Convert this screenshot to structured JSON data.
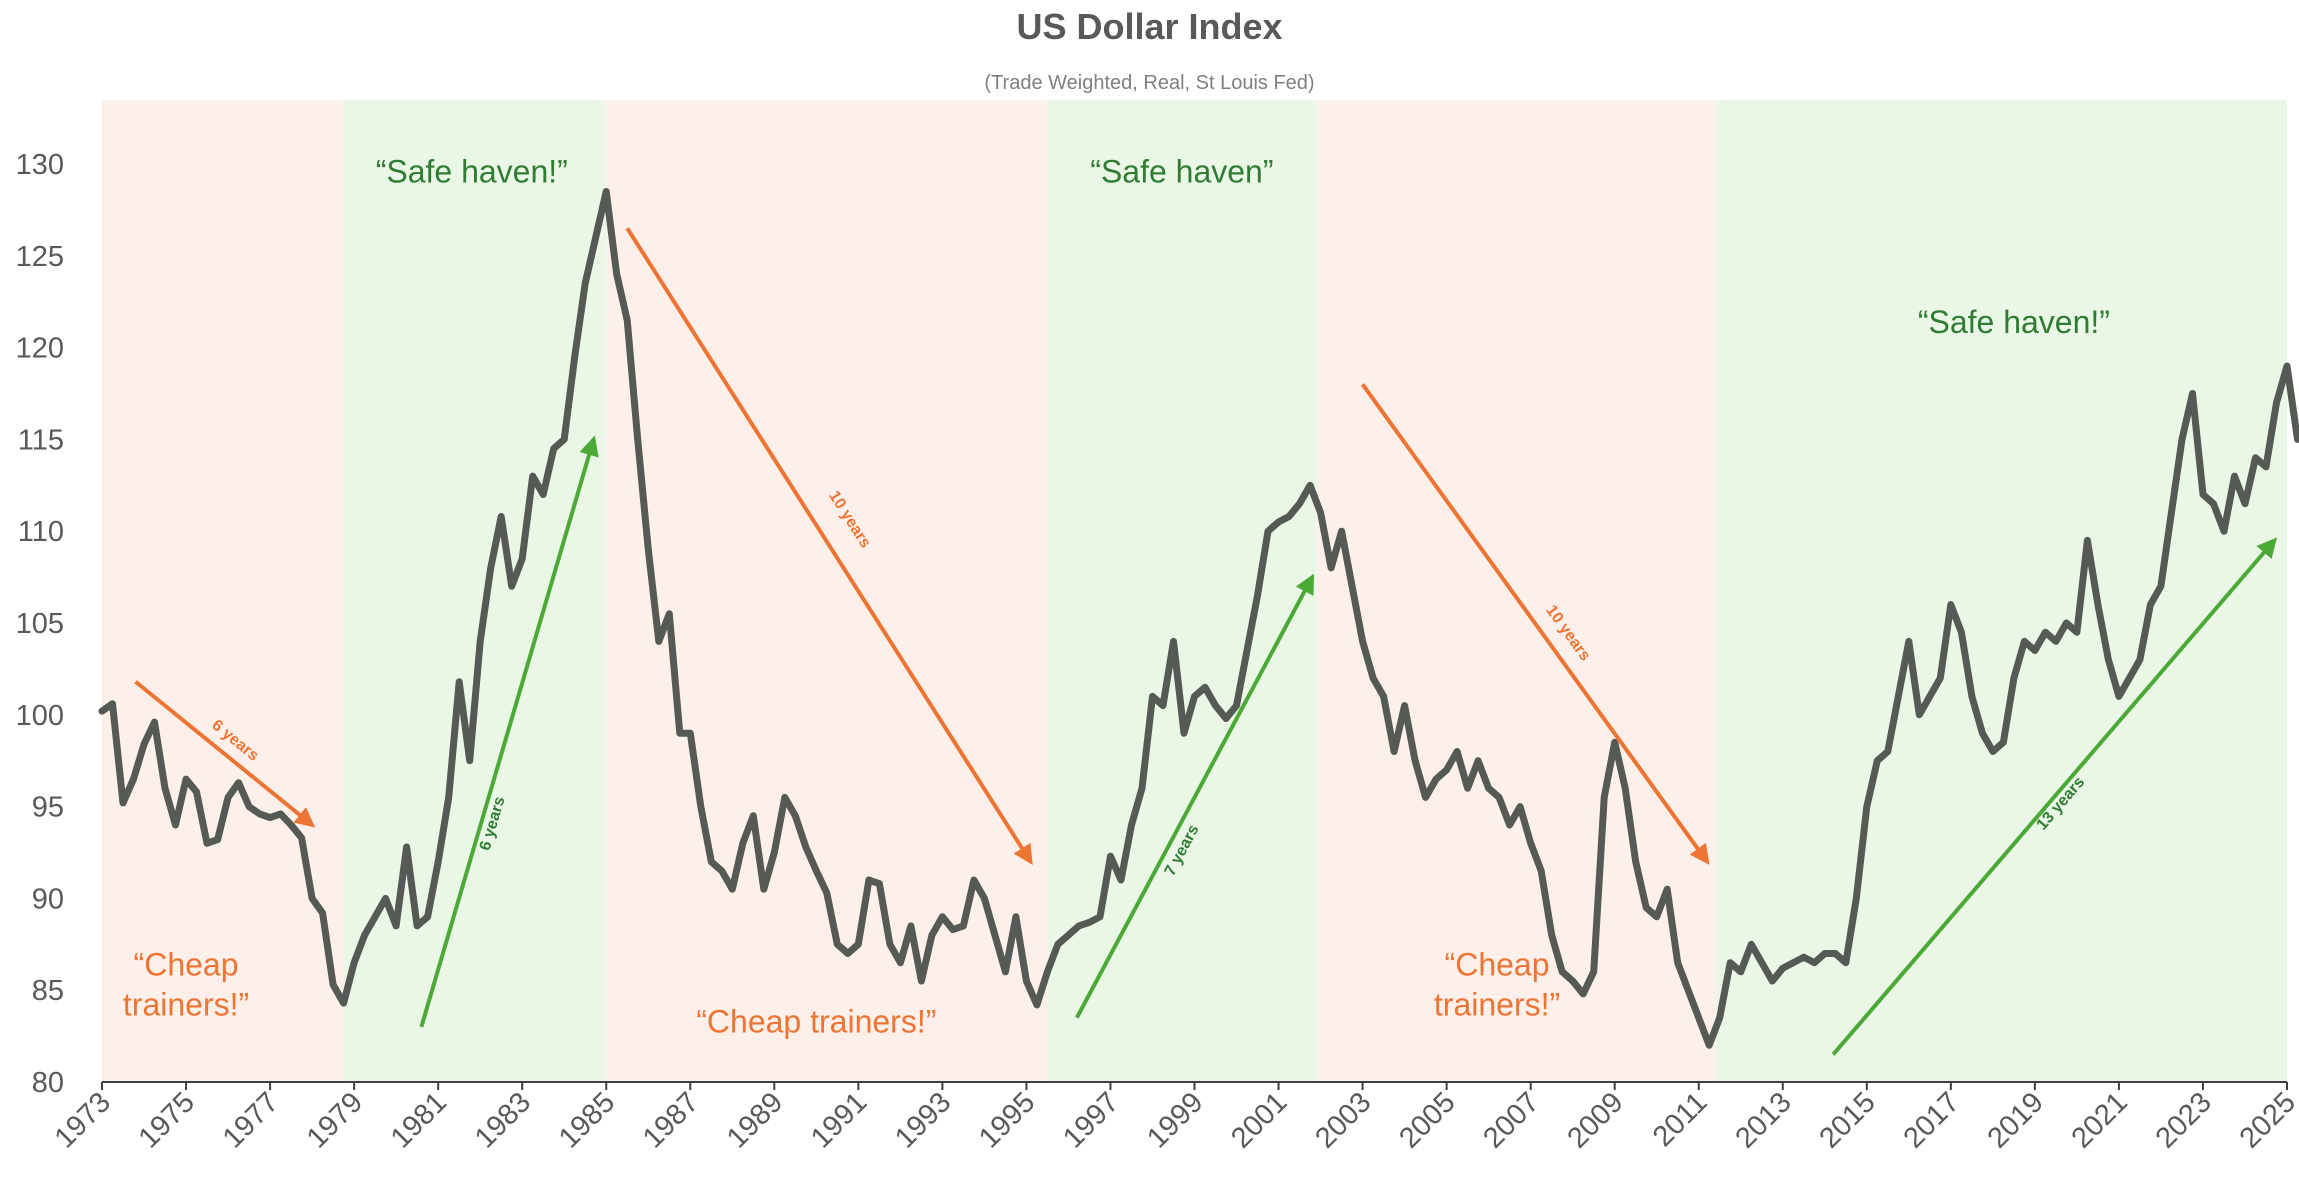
{
  "chart_data": {
    "type": "line",
    "title": "US Dollar Index",
    "subtitle": "(Trade Weighted, Real, St Louis Fed)",
    "xlabel": "",
    "ylabel": "",
    "xlim": [
      1973,
      2025
    ],
    "ylim": [
      80,
      130
    ],
    "yticks": [
      80,
      85,
      90,
      95,
      100,
      105,
      110,
      115,
      120,
      125,
      130
    ],
    "xticks": [
      1973,
      1975,
      1977,
      1979,
      1981,
      1983,
      1985,
      1987,
      1989,
      1991,
      1993,
      1995,
      1997,
      1999,
      2001,
      2003,
      2005,
      2007,
      2009,
      2011,
      2013,
      2015,
      2017,
      2019,
      2021,
      2023,
      2025
    ],
    "grid": false,
    "legend": "none",
    "colors": {
      "line": "#555a55",
      "weak_band": "#fdf0ea",
      "strong_band": "#ebf7e6",
      "orange": "#ee7433",
      "green": "#4aaa35",
      "green_text": "#2e7d32",
      "orange_text": "#ee7433"
    },
    "series": [
      {
        "points": [
          [
            1973.0,
            100.2
          ],
          [
            1973.25,
            100.6
          ],
          [
            1973.5,
            95.2
          ],
          [
            1973.75,
            96.5
          ],
          [
            1974.0,
            98.4
          ],
          [
            1974.25,
            99.6
          ],
          [
            1974.5,
            96.0
          ],
          [
            1974.75,
            94.0
          ],
          [
            1975.0,
            96.5
          ],
          [
            1975.25,
            95.8
          ],
          [
            1975.5,
            93.0
          ],
          [
            1975.75,
            93.2
          ],
          [
            1976.0,
            95.5
          ],
          [
            1976.25,
            96.3
          ],
          [
            1976.5,
            95.0
          ],
          [
            1976.75,
            94.6
          ],
          [
            1977.0,
            94.4
          ],
          [
            1977.25,
            94.6
          ],
          [
            1977.5,
            94.0
          ],
          [
            1977.75,
            93.3
          ],
          [
            1978.0,
            90.0
          ],
          [
            1978.25,
            89.2
          ],
          [
            1978.5,
            85.3
          ],
          [
            1978.75,
            84.3
          ],
          [
            1979.0,
            86.5
          ],
          [
            1979.25,
            88.0
          ],
          [
            1979.5,
            89.0
          ],
          [
            1979.75,
            90.0
          ],
          [
            1980.0,
            88.5
          ],
          [
            1980.25,
            92.8
          ],
          [
            1980.5,
            88.5
          ],
          [
            1980.75,
            89.0
          ],
          [
            1981.0,
            92.0
          ],
          [
            1981.25,
            95.5
          ],
          [
            1981.5,
            101.8
          ],
          [
            1981.75,
            97.5
          ],
          [
            1982.0,
            104.0
          ],
          [
            1982.25,
            108.0
          ],
          [
            1982.5,
            110.8
          ],
          [
            1982.75,
            107.0
          ],
          [
            1983.0,
            108.5
          ],
          [
            1983.25,
            113.0
          ],
          [
            1983.5,
            112.0
          ],
          [
            1983.75,
            114.5
          ],
          [
            1984.0,
            115.0
          ],
          [
            1984.25,
            119.5
          ],
          [
            1984.5,
            123.5
          ],
          [
            1984.75,
            126.0
          ],
          [
            1985.0,
            128.5
          ],
          [
            1985.25,
            124.0
          ],
          [
            1985.5,
            121.5
          ],
          [
            1985.75,
            115.0
          ],
          [
            1986.0,
            109.0
          ],
          [
            1986.25,
            104.0
          ],
          [
            1986.5,
            105.5
          ],
          [
            1986.75,
            99.0
          ],
          [
            1987.0,
            99.0
          ],
          [
            1987.25,
            95.0
          ],
          [
            1987.5,
            92.0
          ],
          [
            1987.75,
            91.5
          ],
          [
            1988.0,
            90.5
          ],
          [
            1988.25,
            93.0
          ],
          [
            1988.5,
            94.5
          ],
          [
            1988.75,
            90.5
          ],
          [
            1989.0,
            92.5
          ],
          [
            1989.25,
            95.5
          ],
          [
            1989.5,
            94.5
          ],
          [
            1989.75,
            92.8
          ],
          [
            1990.0,
            91.5
          ],
          [
            1990.25,
            90.3
          ],
          [
            1990.5,
            87.5
          ],
          [
            1990.75,
            87.0
          ],
          [
            1991.0,
            87.5
          ],
          [
            1991.25,
            91.0
          ],
          [
            1991.5,
            90.8
          ],
          [
            1991.75,
            87.5
          ],
          [
            1992.0,
            86.5
          ],
          [
            1992.25,
            88.5
          ],
          [
            1992.5,
            85.5
          ],
          [
            1992.75,
            88.0
          ],
          [
            1993.0,
            89.0
          ],
          [
            1993.25,
            88.3
          ],
          [
            1993.5,
            88.5
          ],
          [
            1993.75,
            91.0
          ],
          [
            1994.0,
            90.0
          ],
          [
            1994.25,
            88.0
          ],
          [
            1994.5,
            86.0
          ],
          [
            1994.75,
            89.0
          ],
          [
            1995.0,
            85.5
          ],
          [
            1995.25,
            84.2
          ],
          [
            1995.5,
            86.0
          ],
          [
            1995.75,
            87.5
          ],
          [
            1996.0,
            88.0
          ],
          [
            1996.25,
            88.5
          ],
          [
            1996.5,
            88.7
          ],
          [
            1996.75,
            89.0
          ],
          [
            1997.0,
            92.3
          ],
          [
            1997.25,
            91.0
          ],
          [
            1997.5,
            94.0
          ],
          [
            1997.75,
            96.0
          ],
          [
            1998.0,
            101.0
          ],
          [
            1998.25,
            100.5
          ],
          [
            1998.5,
            104.0
          ],
          [
            1998.75,
            99.0
          ],
          [
            1999.0,
            101.0
          ],
          [
            1999.25,
            101.5
          ],
          [
            1999.5,
            100.5
          ],
          [
            1999.75,
            99.8
          ],
          [
            2000.0,
            100.5
          ],
          [
            2000.25,
            103.5
          ],
          [
            2000.5,
            106.5
          ],
          [
            2000.75,
            110.0
          ],
          [
            2001.0,
            110.5
          ],
          [
            2001.25,
            110.8
          ],
          [
            2001.5,
            111.5
          ],
          [
            2001.75,
            112.5
          ],
          [
            2002.0,
            111.0
          ],
          [
            2002.25,
            108.0
          ],
          [
            2002.5,
            110.0
          ],
          [
            2002.75,
            107.0
          ],
          [
            2003.0,
            104.0
          ],
          [
            2003.25,
            102.0
          ],
          [
            2003.5,
            101.0
          ],
          [
            2003.75,
            98.0
          ],
          [
            2004.0,
            100.5
          ],
          [
            2004.25,
            97.5
          ],
          [
            2004.5,
            95.5
          ],
          [
            2004.75,
            96.5
          ],
          [
            2005.0,
            97.0
          ],
          [
            2005.25,
            98.0
          ],
          [
            2005.5,
            96.0
          ],
          [
            2005.75,
            97.5
          ],
          [
            2006.0,
            96.0
          ],
          [
            2006.25,
            95.5
          ],
          [
            2006.5,
            94.0
          ],
          [
            2006.75,
            95.0
          ],
          [
            2007.0,
            93.0
          ],
          [
            2007.25,
            91.5
          ],
          [
            2007.5,
            88.0
          ],
          [
            2007.75,
            86.0
          ],
          [
            2008.0,
            85.5
          ],
          [
            2008.25,
            84.8
          ],
          [
            2008.5,
            86.0
          ],
          [
            2008.75,
            95.5
          ],
          [
            2009.0,
            98.5
          ],
          [
            2009.25,
            96.0
          ],
          [
            2009.5,
            92.0
          ],
          [
            2009.75,
            89.5
          ],
          [
            2010.0,
            89.0
          ],
          [
            2010.25,
            90.5
          ],
          [
            2010.5,
            86.5
          ],
          [
            2010.75,
            85.0
          ],
          [
            2011.0,
            83.5
          ],
          [
            2011.25,
            82.0
          ],
          [
            2011.5,
            83.5
          ],
          [
            2011.75,
            86.5
          ],
          [
            2012.0,
            86.0
          ],
          [
            2012.25,
            87.5
          ],
          [
            2012.5,
            86.5
          ],
          [
            2012.75,
            85.5
          ],
          [
            2013.0,
            86.2
          ],
          [
            2013.25,
            86.5
          ],
          [
            2013.5,
            86.8
          ],
          [
            2013.75,
            86.5
          ],
          [
            2014.0,
            87.0
          ],
          [
            2014.25,
            87.0
          ],
          [
            2014.5,
            86.5
          ],
          [
            2014.75,
            90.0
          ],
          [
            2015.0,
            95.0
          ],
          [
            2015.25,
            97.5
          ],
          [
            2015.5,
            98.0
          ],
          [
            2015.75,
            101.0
          ],
          [
            2016.0,
            104.0
          ],
          [
            2016.25,
            100.0
          ],
          [
            2016.5,
            101.0
          ],
          [
            2016.75,
            102.0
          ],
          [
            2017.0,
            106.0
          ],
          [
            2017.25,
            104.5
          ],
          [
            2017.5,
            101.0
          ],
          [
            2017.75,
            99.0
          ],
          [
            2018.0,
            98.0
          ],
          [
            2018.25,
            98.5
          ],
          [
            2018.5,
            102.0
          ],
          [
            2018.75,
            104.0
          ],
          [
            2019.0,
            103.5
          ],
          [
            2019.25,
            104.5
          ],
          [
            2019.5,
            104.0
          ],
          [
            2019.75,
            105.0
          ],
          [
            2020.0,
            104.5
          ],
          [
            2020.25,
            109.5
          ],
          [
            2020.5,
            106.0
          ],
          [
            2020.75,
            103.0
          ],
          [
            2021.0,
            101.0
          ],
          [
            2021.25,
            102.0
          ],
          [
            2021.5,
            103.0
          ],
          [
            2021.75,
            106.0
          ],
          [
            2022.0,
            107.0
          ],
          [
            2022.25,
            111.0
          ],
          [
            2022.5,
            115.0
          ],
          [
            2022.75,
            117.5
          ],
          [
            2023.0,
            112.0
          ],
          [
            2023.25,
            111.5
          ],
          [
            2023.5,
            110.0
          ],
          [
            2023.75,
            113.0
          ],
          [
            2024.0,
            111.5
          ],
          [
            2024.25,
            114.0
          ],
          [
            2024.5,
            113.5
          ],
          [
            2024.75,
            117.0
          ],
          [
            2025.0,
            119.0
          ],
          [
            2025.25,
            115.0
          ]
        ]
      }
    ],
    "bands": [
      {
        "from": 1973.0,
        "to": 1978.75,
        "kind": "weak"
      },
      {
        "from": 1978.75,
        "to": 1985.0,
        "kind": "strong"
      },
      {
        "from": 1985.0,
        "to": 1995.5,
        "kind": "weak"
      },
      {
        "from": 1995.5,
        "to": 2001.9,
        "kind": "strong"
      },
      {
        "from": 2001.9,
        "to": 2011.4,
        "kind": "weak"
      },
      {
        "from": 2011.4,
        "to": 2025.25,
        "kind": "strong"
      }
    ],
    "arrows": [
      {
        "x1": 1973.8,
        "y1": 101.8,
        "x2": 1978.0,
        "y2": 94.0,
        "kind": "orange",
        "label": "6 years",
        "lx": 1976.1,
        "ly": 98.4
      },
      {
        "x1": 1985.5,
        "y1": 126.5,
        "x2": 1995.1,
        "y2": 92.0,
        "kind": "orange",
        "label": "10 years",
        "lx": 1990.7,
        "ly": 110.5
      },
      {
        "x1": 2003.0,
        "y1": 118.0,
        "x2": 2011.2,
        "y2": 92.0,
        "kind": "orange",
        "label": "10 years",
        "lx": 2007.8,
        "ly": 104.3
      },
      {
        "x1": 1980.6,
        "y1": 83.0,
        "x2": 1984.7,
        "y2": 115.0,
        "kind": "green",
        "label": "6 years",
        "lx": 1982.4,
        "ly": 94.0
      },
      {
        "x1": 1996.2,
        "y1": 83.5,
        "x2": 2001.8,
        "y2": 107.5,
        "kind": "green",
        "label": "7 years",
        "lx": 1998.8,
        "ly": 92.5
      },
      {
        "x1": 2014.2,
        "y1": 81.5,
        "x2": 2024.7,
        "y2": 109.5,
        "kind": "green",
        "label": "13 years",
        "lx": 2019.7,
        "ly": 95.0
      }
    ],
    "annotations": [
      {
        "lines": [
          "“Cheap",
          "trainers!”"
        ],
        "x": 1975.0,
        "y": 85.8,
        "kind": "orange_text"
      },
      {
        "lines": [
          "“Safe haven!”"
        ],
        "x": 1981.8,
        "y": 129.0,
        "kind": "green_text"
      },
      {
        "lines": [
          "“Cheap trainers!”"
        ],
        "x": 1990.0,
        "y": 82.7,
        "kind": "orange_text"
      },
      {
        "lines": [
          "“Safe haven”"
        ],
        "x": 1998.7,
        "y": 129.0,
        "kind": "green_text"
      },
      {
        "lines": [
          "“Cheap",
          "trainers!”"
        ],
        "x": 2006.2,
        "y": 85.8,
        "kind": "orange_text"
      },
      {
        "lines": [
          "“Safe haven!”"
        ],
        "x": 2018.5,
        "y": 120.8,
        "kind": "green_text"
      }
    ]
  }
}
